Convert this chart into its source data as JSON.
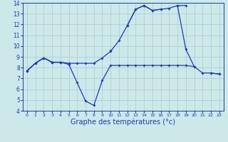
{
  "background_color": "#cce8e8",
  "plot_bg_color": "#cce8e8",
  "line_color": "#1a3acc",
  "grid_color": "#aacccc",
  "xlabel": "Graphe des températures (°c)",
  "xlabel_fontsize": 7,
  "xlim": [
    -0.5,
    23.5
  ],
  "ylim": [
    4,
    14
  ],
  "yticks": [
    4,
    5,
    6,
    7,
    8,
    9,
    10,
    11,
    12,
    13,
    14
  ],
  "xticks": [
    0,
    1,
    2,
    3,
    4,
    5,
    6,
    7,
    8,
    9,
    10,
    11,
    12,
    13,
    14,
    15,
    16,
    17,
    18,
    19,
    20,
    21,
    22,
    23
  ],
  "series": [
    {
      "x": [
        0,
        1,
        2,
        3,
        4,
        5,
        6,
        7,
        8,
        9,
        10,
        11,
        12,
        13,
        14,
        15,
        16,
        17,
        18,
        19,
        20,
        21,
        22,
        23
      ],
      "y": [
        7.7,
        8.4,
        8.9,
        8.5,
        8.5,
        8.3,
        6.6,
        4.9,
        4.5,
        6.8,
        8.2,
        8.2,
        8.2,
        8.2,
        8.2,
        8.2,
        8.2,
        8.2,
        8.2,
        8.2,
        8.1,
        7.5,
        7.5,
        7.4
      ]
    },
    {
      "x": [
        0,
        1,
        2,
        3,
        4,
        5,
        6,
        7,
        8,
        9,
        10,
        11,
        12,
        13,
        14,
        15,
        16,
        17,
        18,
        19,
        20,
        21,
        22,
        23
      ],
      "y": [
        7.7,
        8.4,
        8.9,
        8.5,
        8.5,
        8.4,
        8.4,
        8.4,
        8.4,
        8.9,
        9.5,
        10.5,
        11.9,
        13.4,
        13.75,
        13.3,
        13.4,
        13.5,
        13.75,
        13.75,
        null,
        null,
        null,
        null
      ]
    },
    {
      "x": [
        0,
        1,
        2,
        3,
        4,
        5,
        6,
        7,
        8,
        9,
        10,
        11,
        12,
        13,
        14,
        15,
        16,
        17,
        18,
        19,
        20,
        21,
        22,
        23
      ],
      "y": [
        7.7,
        8.4,
        8.9,
        8.5,
        8.5,
        null,
        null,
        null,
        null,
        null,
        9.6,
        null,
        11.9,
        13.4,
        13.75,
        13.3,
        13.4,
        null,
        13.75,
        9.7,
        8.1,
        null,
        7.5,
        7.4
      ]
    }
  ]
}
